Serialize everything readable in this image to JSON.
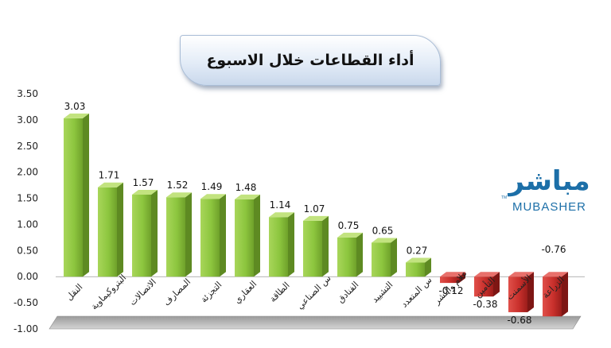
{
  "chart_data": {
    "type": "bar",
    "title": "أداء القطاعات خلال الاسبوع",
    "categories": [
      "النقل",
      "البتروكيماوية",
      "الاتصالات",
      "المصارف",
      "التجزئة",
      "العقاري",
      "الطاقة",
      "س الصناعي",
      "الفنادق",
      "التشييد",
      "س المتعدد",
      "علام والنشر",
      "التأمين",
      "الأسمنت",
      "الزراعة"
    ],
    "values": [
      3.03,
      1.71,
      1.57,
      1.52,
      1.49,
      1.48,
      1.14,
      1.07,
      0.75,
      0.65,
      0.27,
      -0.12,
      -0.38,
      -0.68,
      -0.76
    ],
    "value_labels": [
      "3.03",
      "1.71",
      "1.57",
      "1.52",
      "1.49",
      "1.48",
      "1.14",
      "1.07",
      "0.75",
      "0.65",
      "0.27",
      "-0.12",
      "-0.38",
      "-0.68",
      "-0.76"
    ],
    "yticks": [
      "3.50",
      "3.00",
      "2.50",
      "2.00",
      "1.50",
      "1.00",
      "0.50",
      "0.00",
      "-0.50",
      "-1.00"
    ],
    "ylim": [
      -1.0,
      3.5
    ],
    "grid": false,
    "colors": {
      "positive": "#8dc63f",
      "negative": "#c9302c"
    }
  },
  "logo": {
    "arabic": "مباشر",
    "english": "MUBASHER",
    "tm": "TM"
  }
}
